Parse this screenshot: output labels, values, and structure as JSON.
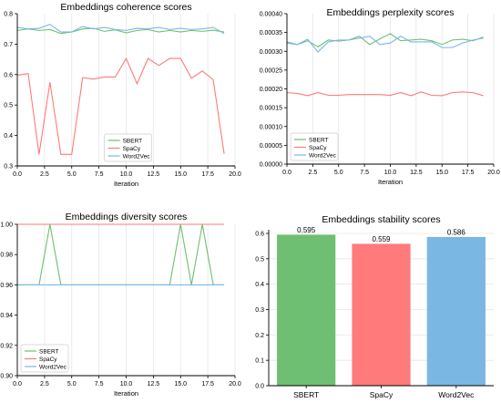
{
  "colors": {
    "SBERT": "#6fbf73",
    "SpaCy": "#ff7a7a",
    "Word2Vec": "#7ab7e3"
  },
  "chart_data": [
    {
      "id": "coherence",
      "type": "line",
      "title": "Embeddings coherence scores",
      "xlabel": "Iteration",
      "ylabel": "",
      "xlim": [
        0,
        20
      ],
      "ylim": [
        0.3,
        0.8
      ],
      "xticks": [
        "0.0",
        "2.5",
        "5.0",
        "7.5",
        "10.0",
        "12.5",
        "15.0",
        "17.5",
        "20.0"
      ],
      "yticks": [
        "0.3",
        "0.4",
        "0.5",
        "0.6",
        "0.7",
        "0.8"
      ],
      "legend": "lower-center",
      "grid": "vertical",
      "x": [
        0,
        1,
        2,
        3,
        4,
        5,
        6,
        7,
        8,
        9,
        10,
        11,
        12,
        13,
        14,
        15,
        16,
        17,
        18,
        19
      ],
      "series": [
        {
          "name": "SBERT",
          "values": [
            0.745,
            0.75,
            0.745,
            0.748,
            0.735,
            0.74,
            0.75,
            0.752,
            0.742,
            0.747,
            0.737,
            0.745,
            0.748,
            0.74,
            0.745,
            0.74,
            0.745,
            0.742,
            0.746,
            0.74
          ]
        },
        {
          "name": "SpaCy",
          "values": [
            0.598,
            0.603,
            0.338,
            0.575,
            0.338,
            0.338,
            0.59,
            0.585,
            0.592,
            0.592,
            0.653,
            0.57,
            0.653,
            0.63,
            0.653,
            0.653,
            0.588,
            0.612,
            0.583,
            0.34
          ]
        },
        {
          "name": "Word2Vec",
          "values": [
            0.755,
            0.75,
            0.752,
            0.765,
            0.74,
            0.74,
            0.758,
            0.75,
            0.755,
            0.748,
            0.745,
            0.752,
            0.75,
            0.755,
            0.748,
            0.752,
            0.748,
            0.75,
            0.755,
            0.735
          ]
        }
      ]
    },
    {
      "id": "perplexity",
      "type": "line",
      "title": "Embeddings perplexity scores",
      "xlabel": "Iteration",
      "ylabel": "",
      "xlim": [
        0,
        20
      ],
      "ylim": [
        0,
        0.0004
      ],
      "xticks": [
        "0.0",
        "2.5",
        "5.0",
        "7.5",
        "10.0",
        "12.5",
        "15.0",
        "17.5",
        "20.0"
      ],
      "yticks": [
        "0.00000",
        "0.00005",
        "0.00010",
        "0.00015",
        "0.00020",
        "0.00025",
        "0.00030",
        "0.00035",
        "0.00040"
      ],
      "legend": "lower-left",
      "grid": "vertical",
      "x": [
        0,
        1,
        2,
        3,
        4,
        5,
        6,
        7,
        8,
        9,
        10,
        11,
        12,
        13,
        14,
        15,
        16,
        17,
        18,
        19
      ],
      "series": [
        {
          "name": "SBERT",
          "values": [
            0.000322,
            0.000318,
            0.000328,
            0.000312,
            0.00033,
            0.000327,
            0.00033,
            0.00034,
            0.000318,
            0.000333,
            0.000347,
            0.000328,
            0.00033,
            0.000332,
            0.000328,
            0.000318,
            0.00033,
            0.000332,
            0.000328,
            0.000338
          ]
        },
        {
          "name": "SpaCy",
          "values": [
            0.00019,
            0.000188,
            0.000182,
            0.00019,
            0.000183,
            0.000183,
            0.000185,
            0.000185,
            0.000185,
            0.000185,
            0.000183,
            0.00019,
            0.000182,
            0.000192,
            0.000183,
            0.000182,
            0.00019,
            0.000192,
            0.00019,
            0.000182
          ]
        },
        {
          "name": "Word2Vec",
          "values": [
            0.000325,
            0.000318,
            0.000332,
            0.000298,
            0.000325,
            0.00033,
            0.00033,
            0.000335,
            0.00034,
            0.000318,
            0.000322,
            0.00034,
            0.000325,
            0.000325,
            0.000325,
            0.00031,
            0.00031,
            0.000322,
            0.00033,
            0.000335
          ]
        }
      ]
    },
    {
      "id": "diversity",
      "type": "line",
      "title": "Embeddings diversity scores",
      "xlabel": "Iteration",
      "ylabel": "",
      "xlim": [
        0,
        20
      ],
      "ylim": [
        0.9,
        1.0
      ],
      "xticks": [
        "0.0",
        "2.5",
        "5.0",
        "7.5",
        "10.0",
        "12.5",
        "15.0",
        "17.5",
        "20.0"
      ],
      "yticks": [
        "0.90",
        "0.92",
        "0.94",
        "0.96",
        "0.98",
        "1.00"
      ],
      "legend": "lower-left",
      "grid": "vertical",
      "x": [
        0,
        1,
        2,
        3,
        4,
        5,
        6,
        7,
        8,
        9,
        10,
        11,
        12,
        13,
        14,
        15,
        16,
        17,
        18,
        19
      ],
      "series": [
        {
          "name": "SBERT",
          "values": [
            0.96,
            0.96,
            0.96,
            1.0,
            0.96,
            0.96,
            0.96,
            0.96,
            0.96,
            0.96,
            0.96,
            0.96,
            0.96,
            0.96,
            0.96,
            1.0,
            0.96,
            1.0,
            0.96,
            0.96
          ]
        },
        {
          "name": "SpaCy",
          "values": [
            1.0,
            1.0,
            1.0,
            1.0,
            1.0,
            1.0,
            1.0,
            1.0,
            1.0,
            1.0,
            1.0,
            1.0,
            1.0,
            1.0,
            1.0,
            1.0,
            1.0,
            1.0,
            1.0,
            1.0
          ]
        },
        {
          "name": "Word2Vec",
          "values": [
            0.96,
            0.96,
            0.96,
            0.96,
            0.96,
            0.96,
            0.96,
            0.96,
            0.96,
            0.96,
            0.96,
            0.96,
            0.96,
            0.96,
            0.96,
            0.96,
            0.96,
            0.96,
            0.96,
            0.96
          ]
        }
      ]
    },
    {
      "id": "stability",
      "type": "bar",
      "title": "Embeddings stability scores",
      "xlabel": "",
      "ylabel": "",
      "ylim": [
        0,
        0.6
      ],
      "yticks": [
        "0.0",
        "0.1",
        "0.2",
        "0.3",
        "0.4",
        "0.5",
        "0.6"
      ],
      "grid": "horizontal",
      "categories": [
        "SBERT",
        "SpaCy",
        "Word2Vec"
      ],
      "values": [
        0.595,
        0.559,
        0.586
      ],
      "value_labels": [
        "0.595",
        "0.559",
        "0.586"
      ]
    }
  ]
}
